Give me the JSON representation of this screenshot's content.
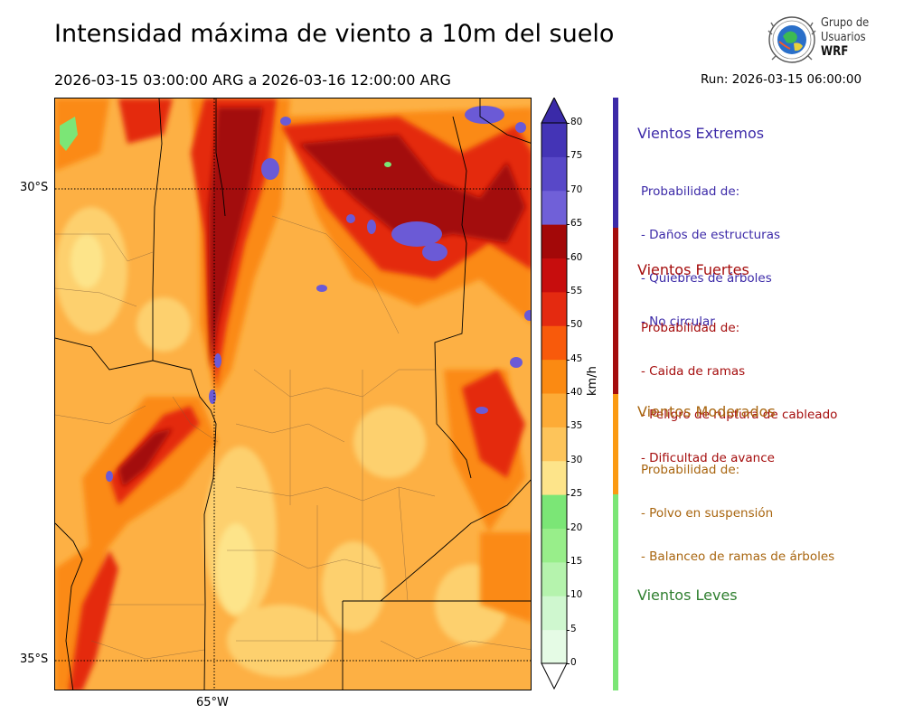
{
  "header": {
    "title": "Intensidad máxima de viento a 10m del suelo",
    "period": "2026-03-15 03:00:00 ARG  a  2026-03-16 12:00:00 ARG",
    "run": "Run: 2026-03-15 06:00:00"
  },
  "logo": {
    "line1": "Grupo de",
    "line2": "Usuarios",
    "line3": "WRF"
  },
  "map": {
    "lat_labels": [
      "30°S",
      "35°S"
    ],
    "lon_labels": [
      "65°W"
    ]
  },
  "colorbar": {
    "unit": "km/h",
    "ticks": [
      "0",
      "5",
      "10",
      "15",
      "20",
      "25",
      "30",
      "35",
      "40",
      "45",
      "50",
      "55",
      "60",
      "65",
      "70",
      "75",
      "80"
    ],
    "colors": [
      "#e5fbe5",
      "#cff7cf",
      "#b5f3ad",
      "#98ee8a",
      "#7be676",
      "#fde48a",
      "#fdc45a",
      "#fdab36",
      "#fb8a12",
      "#f85a0b",
      "#e42a10",
      "#c70d0d",
      "#a30808",
      "#7060d8",
      "#5848c8",
      "#4434b6",
      "#3a2aa8"
    ]
  },
  "categories": [
    {
      "title": "Vientos Extremos",
      "color": "#3c2aa8",
      "desc": [
        "Probabilidad de:",
        "- Daños de estructuras",
        "- Quiebres de árboles",
        "- No circular"
      ]
    },
    {
      "title": "Vientos Fuertes",
      "color": "#a50d0d",
      "desc": [
        "Probabilidad de:",
        "- Caida de ramas",
        "- Peligro de ruptura de cableado",
        "- Dificultad de avance"
      ]
    },
    {
      "title": "Vientos Moderados",
      "color": "#a8650f",
      "desc": [
        "Probabilidad de:",
        "- Polvo en suspensión",
        "- Balanceo de ramas de árboles"
      ]
    },
    {
      "title": "Vientos Leves",
      "color": "#2f7f2f",
      "desc": []
    }
  ]
}
